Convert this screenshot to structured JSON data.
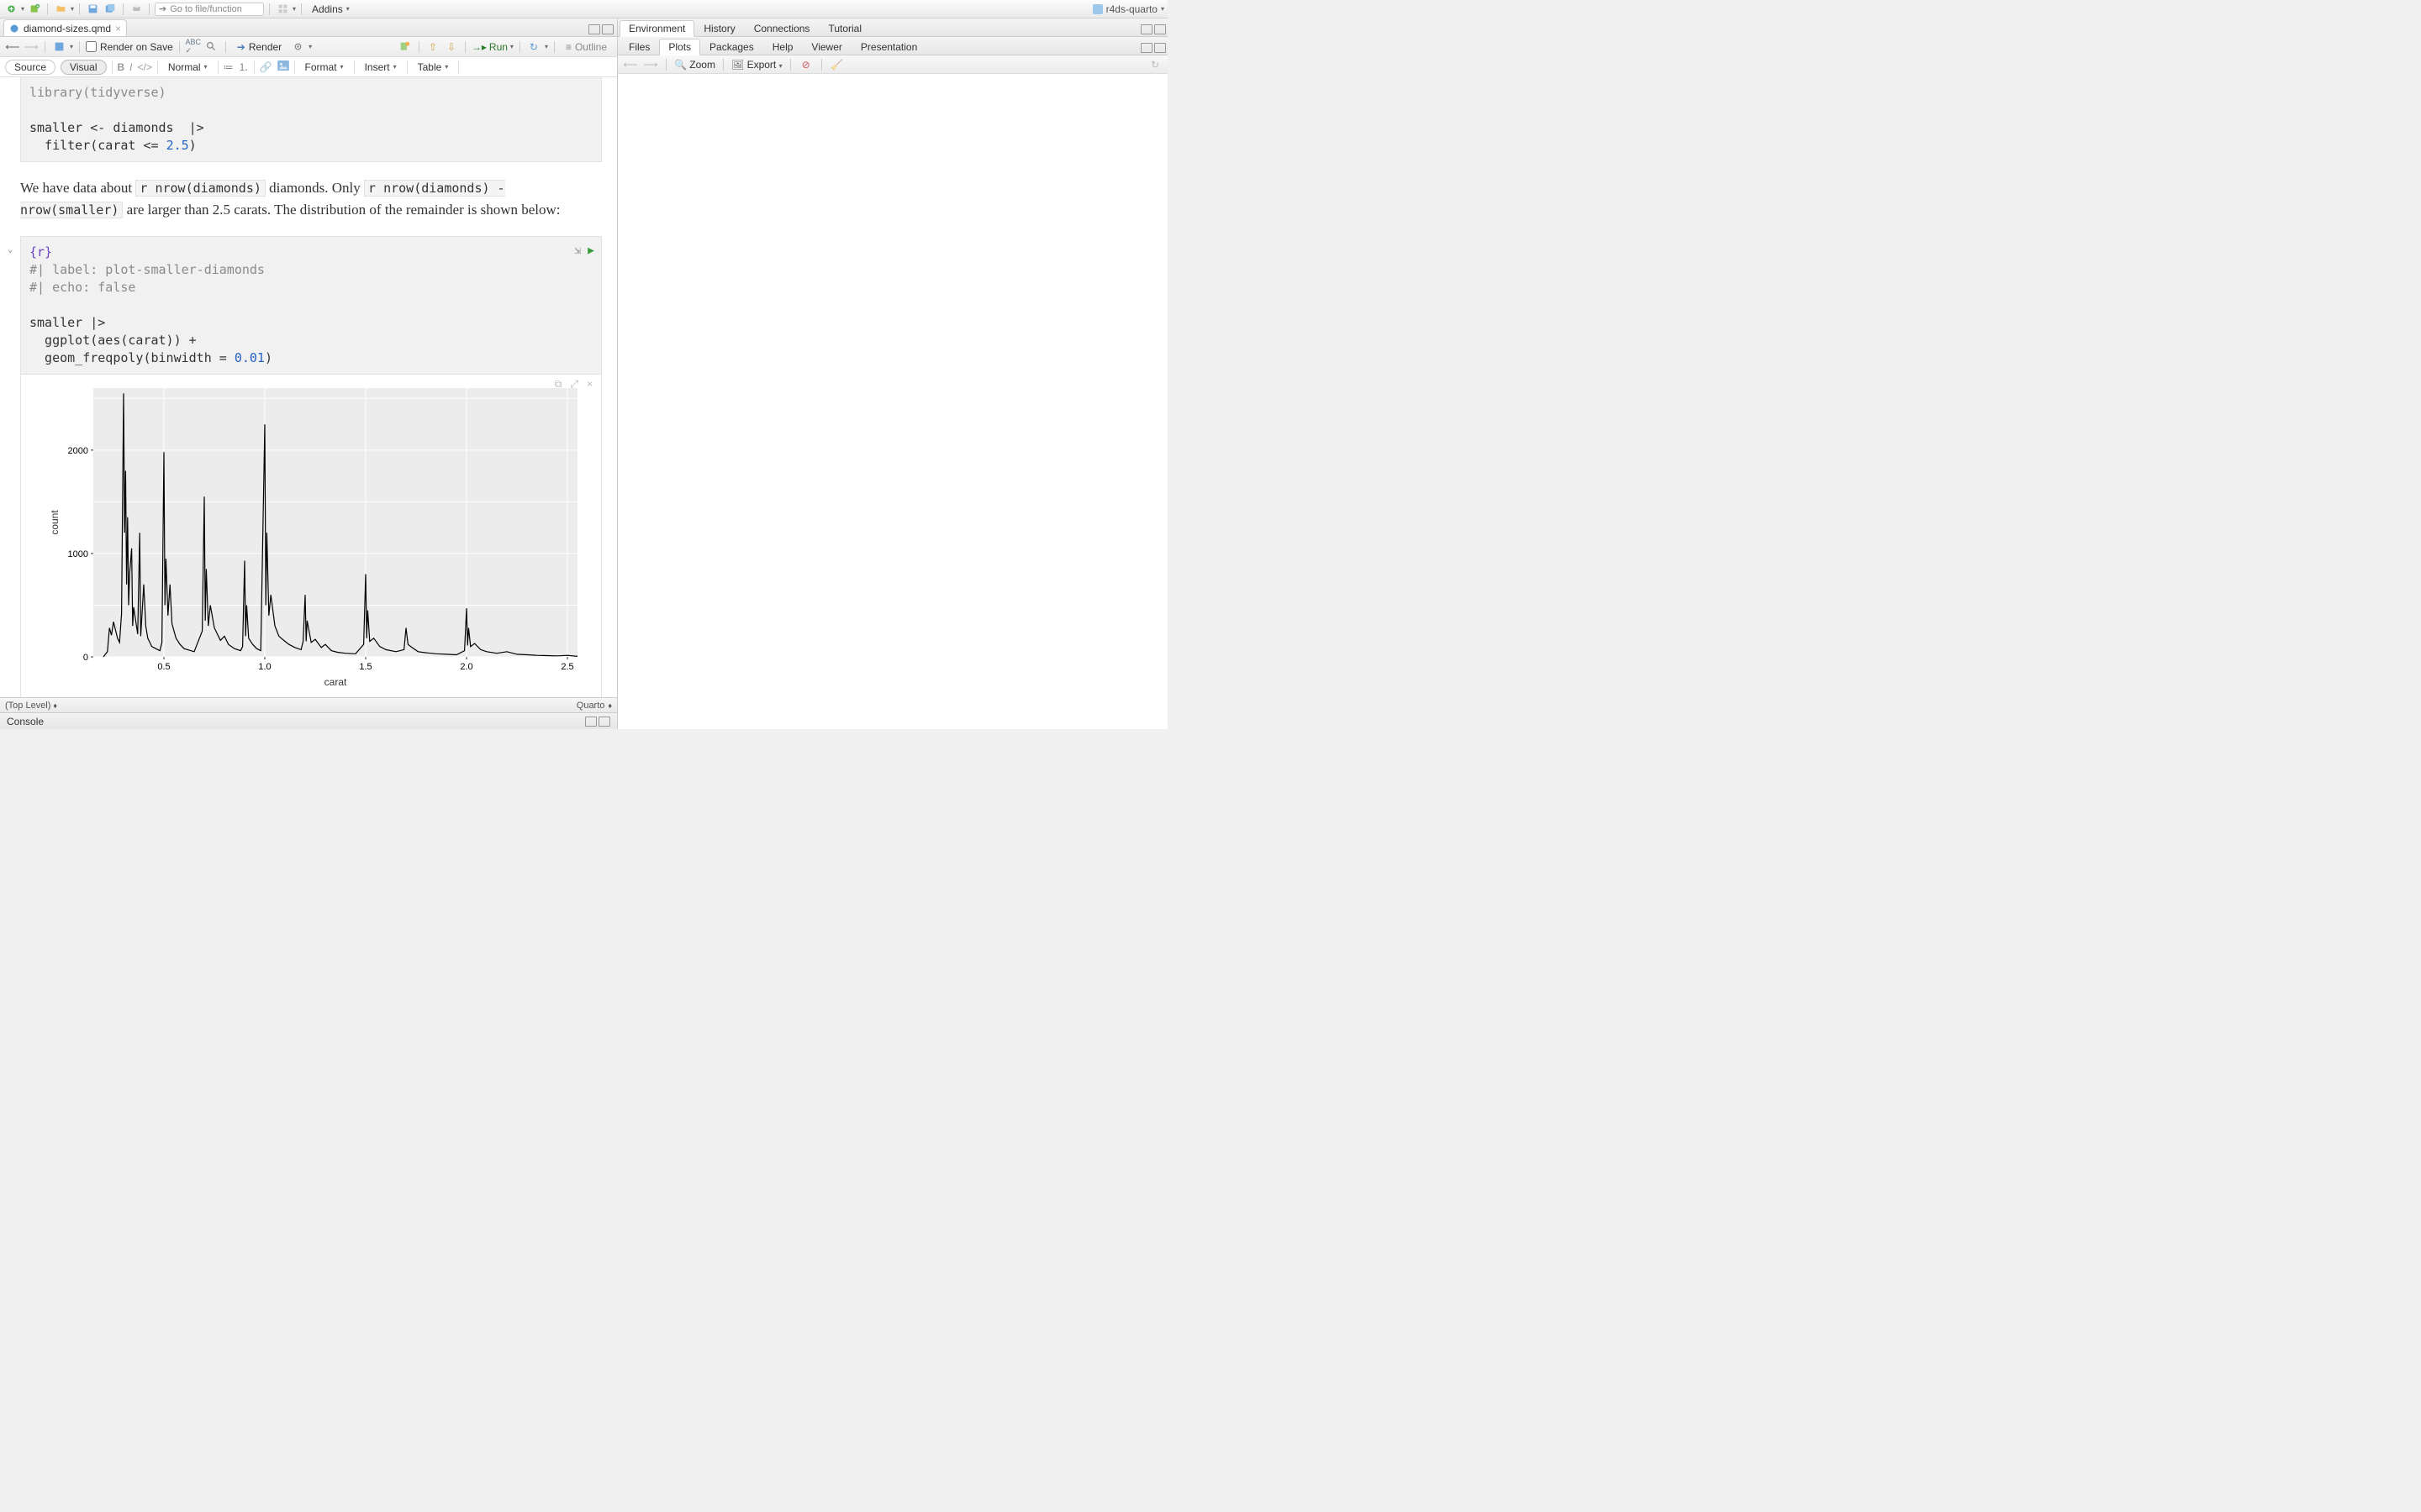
{
  "project_name": "r4ds-quarto",
  "top_toolbar": {
    "goto_placeholder": "Go to file/function",
    "addins_label": "Addins"
  },
  "editor": {
    "filename": "diamond-sizes.qmd",
    "render_on_save": "Render on Save",
    "render_btn": "Render",
    "run_btn": "Run",
    "outline_btn": "Outline",
    "mode_source": "Source",
    "mode_visual": "Visual",
    "fmt_normal": "Normal",
    "menu_format": "Format",
    "menu_insert": "Insert",
    "menu_table": "Table",
    "status_left": "(Top Level)",
    "status_right": "Quarto"
  },
  "console_label": "Console",
  "right_top_tabs": [
    "Environment",
    "History",
    "Connections",
    "Tutorial"
  ],
  "right_bot_tabs": [
    "Files",
    "Plots",
    "Packages",
    "Help",
    "Viewer",
    "Presentation"
  ],
  "plots_toolbar": {
    "zoom": "Zoom",
    "export": "Export"
  },
  "code_top": {
    "l1a": "library",
    "l1b": "(tidyverse)",
    "l3": "smaller <- diamonds  |>",
    "l4_pre": "  filter(carat <= ",
    "l4_num": "2.5",
    "l4_post": ")"
  },
  "prose": {
    "t1": "We have data about ",
    "c1": "r nrow(diamonds)",
    "t2": " diamonds. Only ",
    "c2": "r nrow(diamonds) - nrow(smaller)",
    "t3": " are larger than 2.5 carats. The distribution of the remainder is shown below:"
  },
  "code_cell": {
    "hdr": "{r}",
    "c1": "#| label: plot-smaller-diamonds",
    "c2": "#| echo: false",
    "l1": "smaller |>",
    "l2_pre": "  ggplot(aes(carat)) +",
    "l3_a": "  geom_freqpoly(binwidth = ",
    "l3_num": "0.01",
    "l3_b": ")"
  },
  "chart": {
    "background": "#ececec",
    "grid_color": "#ffffff",
    "line_color": "#000000",
    "xlabel": "carat",
    "ylabel": "count",
    "xlim": [
      0.15,
      2.55
    ],
    "ylim": [
      0,
      2600
    ],
    "ytick_vals": [
      0,
      1000,
      2000
    ],
    "ytick_labels": [
      "0",
      "1000",
      "2000"
    ],
    "xtick_vals": [
      0.5,
      1.0,
      1.5,
      2.0,
      2.5
    ],
    "xtick_labels": [
      "0.5",
      "1.0",
      "1.5",
      "2.0",
      "2.5"
    ],
    "points": [
      [
        0.2,
        0
      ],
      [
        0.22,
        50
      ],
      [
        0.23,
        280
      ],
      [
        0.24,
        210
      ],
      [
        0.25,
        340
      ],
      [
        0.26,
        260
      ],
      [
        0.27,
        180
      ],
      [
        0.28,
        140
      ],
      [
        0.29,
        420
      ],
      [
        0.3,
        2550
      ],
      [
        0.305,
        1200
      ],
      [
        0.31,
        1800
      ],
      [
        0.315,
        700
      ],
      [
        0.32,
        1350
      ],
      [
        0.325,
        500
      ],
      [
        0.33,
        800
      ],
      [
        0.34,
        1050
      ],
      [
        0.345,
        300
      ],
      [
        0.35,
        480
      ],
      [
        0.37,
        220
      ],
      [
        0.38,
        1200
      ],
      [
        0.385,
        200
      ],
      [
        0.4,
        700
      ],
      [
        0.41,
        300
      ],
      [
        0.42,
        180
      ],
      [
        0.44,
        100
      ],
      [
        0.46,
        80
      ],
      [
        0.48,
        60
      ],
      [
        0.49,
        140
      ],
      [
        0.5,
        1980
      ],
      [
        0.505,
        500
      ],
      [
        0.51,
        950
      ],
      [
        0.52,
        400
      ],
      [
        0.53,
        700
      ],
      [
        0.54,
        320
      ],
      [
        0.56,
        180
      ],
      [
        0.58,
        120
      ],
      [
        0.6,
        80
      ],
      [
        0.65,
        50
      ],
      [
        0.69,
        250
      ],
      [
        0.7,
        1550
      ],
      [
        0.705,
        350
      ],
      [
        0.71,
        850
      ],
      [
        0.72,
        300
      ],
      [
        0.73,
        500
      ],
      [
        0.75,
        280
      ],
      [
        0.78,
        160
      ],
      [
        0.8,
        200
      ],
      [
        0.82,
        120
      ],
      [
        0.85,
        80
      ],
      [
        0.88,
        60
      ],
      [
        0.89,
        100
      ],
      [
        0.9,
        930
      ],
      [
        0.905,
        200
      ],
      [
        0.91,
        500
      ],
      [
        0.92,
        180
      ],
      [
        0.94,
        120
      ],
      [
        0.96,
        80
      ],
      [
        0.98,
        60
      ],
      [
        1.0,
        2250
      ],
      [
        1.005,
        500
      ],
      [
        1.01,
        1200
      ],
      [
        1.02,
        400
      ],
      [
        1.03,
        600
      ],
      [
        1.05,
        300
      ],
      [
        1.07,
        200
      ],
      [
        1.1,
        150
      ],
      [
        1.12,
        120
      ],
      [
        1.15,
        90
      ],
      [
        1.18,
        70
      ],
      [
        1.19,
        150
      ],
      [
        1.2,
        600
      ],
      [
        1.205,
        150
      ],
      [
        1.21,
        350
      ],
      [
        1.23,
        140
      ],
      [
        1.25,
        170
      ],
      [
        1.28,
        90
      ],
      [
        1.3,
        120
      ],
      [
        1.33,
        60
      ],
      [
        1.36,
        45
      ],
      [
        1.4,
        35
      ],
      [
        1.45,
        30
      ],
      [
        1.49,
        120
      ],
      [
        1.5,
        800
      ],
      [
        1.505,
        180
      ],
      [
        1.51,
        450
      ],
      [
        1.52,
        150
      ],
      [
        1.54,
        180
      ],
      [
        1.57,
        100
      ],
      [
        1.6,
        70
      ],
      [
        1.65,
        50
      ],
      [
        1.69,
        70
      ],
      [
        1.7,
        280
      ],
      [
        1.71,
        120
      ],
      [
        1.73,
        90
      ],
      [
        1.76,
        50
      ],
      [
        1.8,
        40
      ],
      [
        1.85,
        30
      ],
      [
        1.9,
        25
      ],
      [
        1.95,
        20
      ],
      [
        1.99,
        60
      ],
      [
        2.0,
        470
      ],
      [
        2.005,
        110
      ],
      [
        2.01,
        280
      ],
      [
        2.02,
        100
      ],
      [
        2.04,
        130
      ],
      [
        2.07,
        70
      ],
      [
        2.1,
        50
      ],
      [
        2.15,
        35
      ],
      [
        2.2,
        50
      ],
      [
        2.25,
        25
      ],
      [
        2.3,
        20
      ],
      [
        2.35,
        15
      ],
      [
        2.4,
        12
      ],
      [
        2.45,
        10
      ],
      [
        2.5,
        15
      ],
      [
        2.55,
        5
      ]
    ]
  }
}
